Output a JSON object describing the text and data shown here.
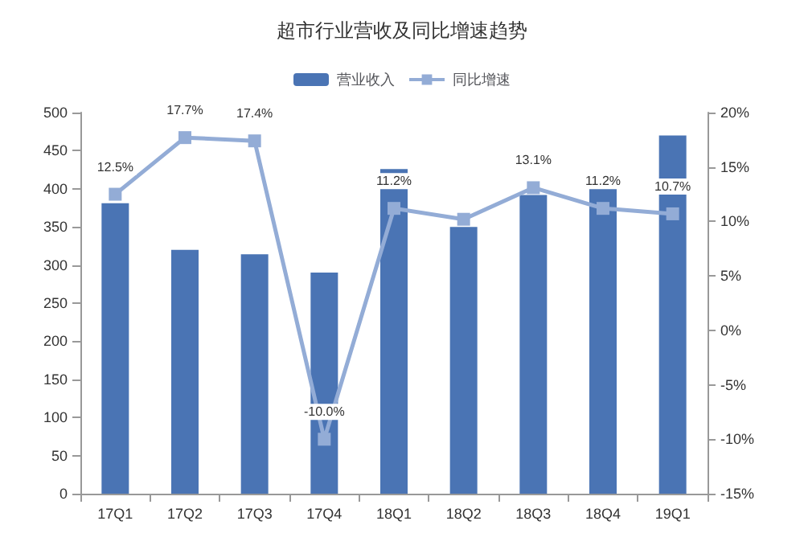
{
  "chart_data": {
    "type": "bar",
    "title": "超市行业营收及同比增速趋势",
    "categories": [
      "17Q1",
      "17Q2",
      "17Q3",
      "17Q4",
      "18Q1",
      "18Q2",
      "18Q3",
      "18Q4",
      "19Q1"
    ],
    "series": [
      {
        "name": "营业收入",
        "color": "#4a74b4",
        "values": [
          381,
          320,
          314,
          290,
          426,
          350,
          392,
          400,
          470
        ]
      },
      {
        "name": "同比增速",
        "type": "line",
        "axis": "y2",
        "color": "#93acd6",
        "marker": "square",
        "values": [
          12.5,
          17.7,
          17.4,
          -10.0,
          11.2,
          10.2,
          13.1,
          11.2,
          10.7
        ],
        "value_labels": [
          "12.5%",
          "17.7%",
          "17.4%",
          "-10.0%",
          "11.2%",
          null,
          "13.1%",
          "11.2%",
          "10.7%"
        ]
      }
    ],
    "ylim": [
      0,
      500
    ],
    "yticks": [
      0,
      50,
      100,
      150,
      200,
      250,
      300,
      350,
      400,
      450,
      500
    ],
    "y2lim": [
      -15,
      20
    ],
    "y2ticks": [
      {
        "value": -15,
        "label": "-15%"
      },
      {
        "value": -10,
        "label": "-10%"
      },
      {
        "value": -5,
        "label": "-5%"
      },
      {
        "value": 0,
        "label": "0%"
      },
      {
        "value": 5,
        "label": "5%"
      },
      {
        "value": 10,
        "label": "10%"
      },
      {
        "value": 15,
        "label": "15%"
      },
      {
        "value": 20,
        "label": "20%"
      }
    ],
    "grid": false,
    "legend": "top"
  }
}
